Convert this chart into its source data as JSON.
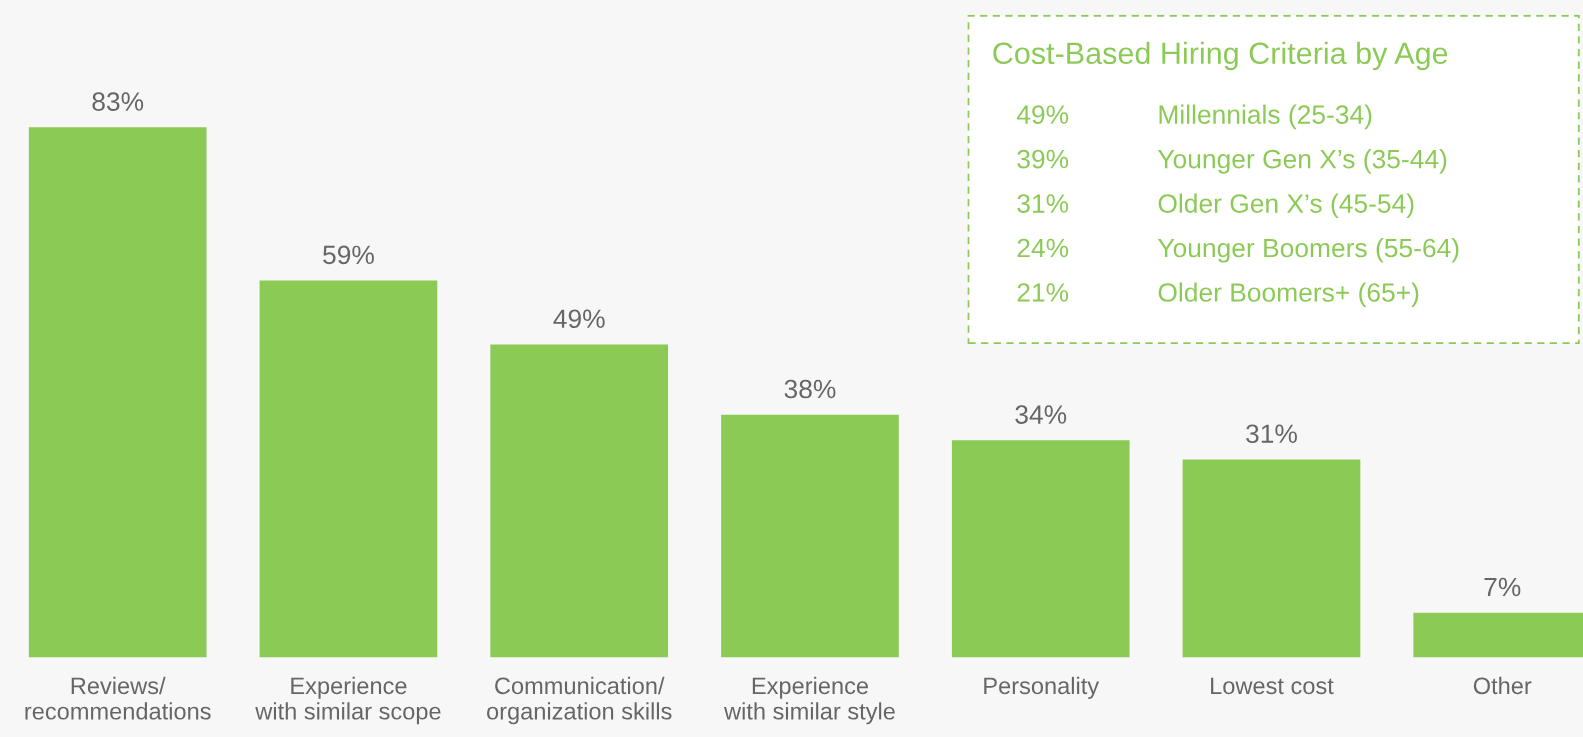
{
  "chart_data": [
    {
      "type": "bar",
      "categories": [
        "Reviews/\nrecommendations",
        "Experience\nwith similar scope",
        "Communication/\norganization skills",
        "Experience\nwith similar style",
        "Personality",
        "Lowest cost",
        "Other"
      ],
      "values": [
        83,
        59,
        49,
        38,
        34,
        31,
        7
      ],
      "value_labels": [
        "83%",
        "59%",
        "49%",
        "38%",
        "34%",
        "31%",
        "7%"
      ],
      "color": "#8bca55"
    },
    {
      "type": "other",
      "title": "Cost-Based Hiring Criteria by Age",
      "annotations": [
        "49%",
        "Millennials (25-34)",
        "39%",
        "Younger Gen X’s (35-44)",
        "31%",
        "Older Gen X’s (45-54)",
        "24%",
        "Younger Boomers (55-64)",
        "21%",
        "Older Boomers+ (65+)"
      ]
    }
  ]
}
